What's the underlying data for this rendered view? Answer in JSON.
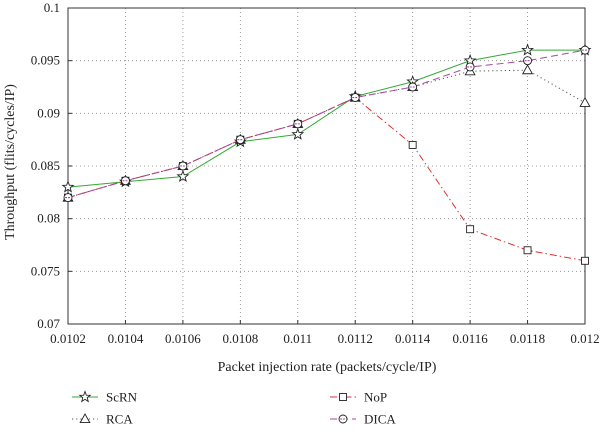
{
  "chart_data": {
    "type": "line",
    "title": "",
    "xlabel": "Packet injection rate (packets/cycle/IP)",
    "ylabel": "Throughput (flits/cycles/IP)",
    "x": [
      0.0102,
      0.0104,
      0.0106,
      0.0108,
      0.011,
      0.0112,
      0.0114,
      0.0116,
      0.0118,
      0.012
    ],
    "x_tick_labels": [
      "0.0102",
      "0.0104",
      "0.0106",
      "0.0108",
      "0.011",
      "0.0112",
      "0.0114",
      "0.0116",
      "0.0118",
      "0.012"
    ],
    "xlim": [
      0.0102,
      0.012
    ],
    "ylim": [
      0.07,
      0.1
    ],
    "y_ticks": [
      0.07,
      0.075,
      0.08,
      0.085,
      0.09,
      0.095,
      0.1
    ],
    "y_tick_labels": [
      "0.07",
      "0.075",
      "0.08",
      "0.085",
      "0.09",
      "0.095",
      "0.1"
    ],
    "grid": true,
    "legend_position": "bottom",
    "series": [
      {
        "name": "ScRN",
        "color": "#33aa33",
        "dash": "solid",
        "marker": "star",
        "values": [
          0.083,
          0.0835,
          0.084,
          0.0873,
          0.088,
          0.0916,
          0.093,
          0.095,
          0.096,
          0.096
        ]
      },
      {
        "name": "RCA",
        "color": "#555555",
        "dash": "dotted",
        "marker": "triangle",
        "values": [
          0.082,
          0.0836,
          0.085,
          0.0875,
          0.089,
          0.0915,
          0.0925,
          0.094,
          0.0941,
          0.091
        ]
      },
      {
        "name": "NoP",
        "color": "#dd3333",
        "dash": "dashdot",
        "marker": "square",
        "values": [
          0.082,
          0.0836,
          0.085,
          0.0875,
          0.089,
          0.0915,
          0.087,
          0.079,
          0.077,
          0.076
        ]
      },
      {
        "name": "DICA",
        "color": "#a04aa0",
        "dash": "dashed",
        "marker": "circle",
        "values": [
          0.082,
          0.0836,
          0.085,
          0.0875,
          0.089,
          0.0915,
          0.0925,
          0.0944,
          0.095,
          0.096
        ]
      }
    ]
  }
}
